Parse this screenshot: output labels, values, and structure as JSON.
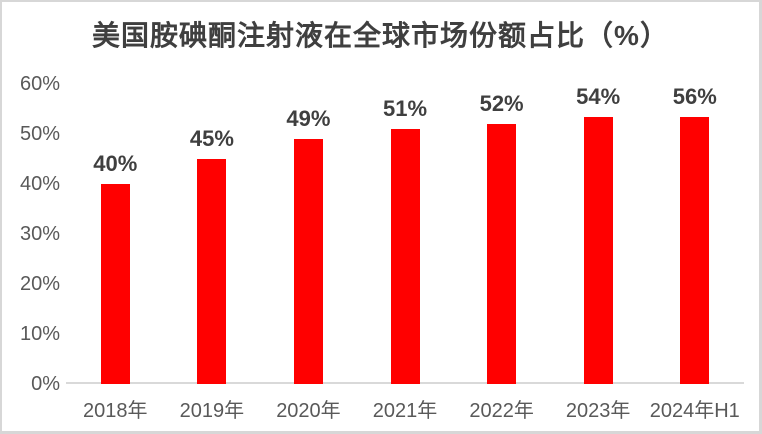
{
  "title": "美国胺碘酮注射液在全球市场份额占比（%）",
  "colors": {
    "bar": "#ff0000",
    "title_text": "#3f3f3f",
    "data_label_text": "#3f3f3f",
    "axis_label_text": "#595959",
    "axis_line": "#d9d9d9",
    "frame_border": "#d7d7d7",
    "background": "#ffffff"
  },
  "chart_data": {
    "type": "bar",
    "title": "美国胺碘酮注射液在全球市场份额占比（%）",
    "categories": [
      "2018年",
      "2019年",
      "2020年",
      "2021年",
      "2022年",
      "2023年",
      "2024年H1"
    ],
    "values": [
      40,
      45,
      49,
      51,
      52,
      54,
      56
    ],
    "data_labels": [
      "40%",
      "45%",
      "49%",
      "51%",
      "52%",
      "54%",
      "56%"
    ],
    "y_ticks": [
      "0%",
      "10%",
      "20%",
      "30%",
      "40%",
      "50%",
      "60%"
    ],
    "xlabel": "",
    "ylabel": "",
    "ylim": [
      0,
      60
    ],
    "y_step": 10,
    "grid": false,
    "legend": false,
    "bar_color": "#ff0000"
  }
}
